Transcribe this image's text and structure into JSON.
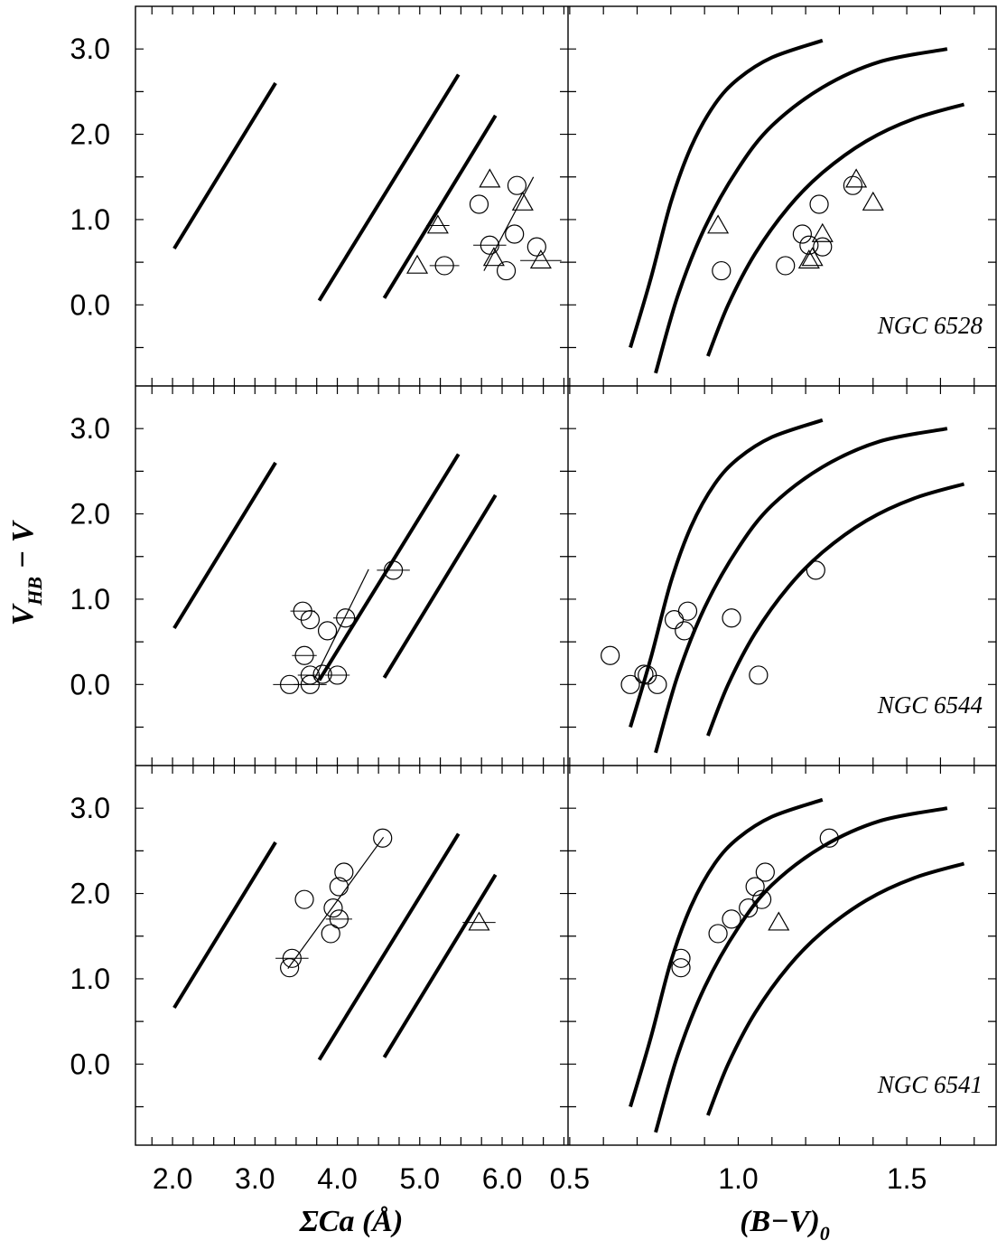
{
  "chart_data": {
    "type": "scatter",
    "y_axis": {
      "label_main": "V",
      "label_sub": "HB",
      "label_tail": " − V",
      "range": [
        -0.95,
        3.5
      ],
      "ticks": [
        "3.0",
        "2.0",
        "1.0",
        "0.0"
      ],
      "tick_values": [
        3.0,
        2.0,
        1.0,
        0.0
      ]
    },
    "x_left": {
      "label": "ΣCa (Å)",
      "range": [
        1.55,
        6.8
      ],
      "ticks": [
        "2.0",
        "3.0",
        "4.0",
        "5.0",
        "6.0"
      ],
      "tick_values": [
        2.0,
        3.0,
        4.0,
        5.0,
        6.0
      ]
    },
    "x_right": {
      "label_main": "(B−V)",
      "label_sub": "0",
      "range": [
        0.495,
        1.765
      ],
      "ticks": [
        "0.5",
        "1.0",
        "1.5"
      ],
      "tick_values": [
        0.5,
        1.0,
        1.5
      ]
    },
    "reference_lines_left": [
      [
        [
          2.02,
          0.66
        ],
        [
          3.25,
          2.6
        ]
      ],
      [
        [
          3.78,
          0.05
        ],
        [
          5.47,
          2.7
        ]
      ],
      [
        [
          4.57,
          0.08
        ],
        [
          5.92,
          2.22
        ]
      ]
    ],
    "reference_curves_right": [
      [
        [
          0.68,
          -0.5
        ],
        [
          0.74,
          0.3
        ],
        [
          0.8,
          1.2
        ],
        [
          0.86,
          1.85
        ],
        [
          0.93,
          2.35
        ],
        [
          1.0,
          2.65
        ],
        [
          1.1,
          2.9
        ],
        [
          1.25,
          3.1
        ]
      ],
      [
        [
          0.755,
          -0.8
        ],
        [
          0.82,
          0.1
        ],
        [
          0.9,
          0.9
        ],
        [
          1.0,
          1.6
        ],
        [
          1.1,
          2.1
        ],
        [
          1.25,
          2.55
        ],
        [
          1.42,
          2.85
        ],
        [
          1.62,
          3.0
        ]
      ],
      [
        [
          0.91,
          -0.6
        ],
        [
          0.97,
          0.0
        ],
        [
          1.05,
          0.6
        ],
        [
          1.15,
          1.15
        ],
        [
          1.25,
          1.55
        ],
        [
          1.38,
          1.92
        ],
        [
          1.52,
          2.18
        ],
        [
          1.67,
          2.35
        ]
      ]
    ],
    "panels": [
      {
        "cluster": "NGC 6528",
        "left_circles": [
          {
            "x": 5.3,
            "y": 0.46,
            "xe": 0.18
          },
          {
            "x": 5.72,
            "y": 1.18
          },
          {
            "x": 6.05,
            "y": 0.4
          },
          {
            "x": 5.85,
            "y": 0.7,
            "xe": 0.2
          },
          {
            "x": 6.15,
            "y": 0.83
          },
          {
            "x": 6.18,
            "y": 1.4
          },
          {
            "x": 6.42,
            "y": 0.68
          }
        ],
        "left_triangles": [
          {
            "x": 4.97,
            "y": 0.46
          },
          {
            "x": 5.22,
            "y": 0.93,
            "xe": 0.14
          },
          {
            "x": 5.85,
            "y": 1.47
          },
          {
            "x": 5.9,
            "y": 0.55
          },
          {
            "x": 6.25,
            "y": 1.2
          },
          {
            "x": 6.47,
            "y": 0.52,
            "xe": 0.25
          }
        ],
        "left_fit": [
          [
            5.78,
            0.4
          ],
          [
            6.38,
            1.5
          ]
        ],
        "right_circles": [
          {
            "x": 0.95,
            "y": 0.4
          },
          {
            "x": 1.14,
            "y": 0.46
          },
          {
            "x": 1.19,
            "y": 0.83
          },
          {
            "x": 1.21,
            "y": 0.7
          },
          {
            "x": 1.24,
            "y": 1.18
          },
          {
            "x": 1.25,
            "y": 0.68
          },
          {
            "x": 1.34,
            "y": 1.4
          }
        ],
        "right_triangles": [
          {
            "x": 0.94,
            "y": 0.93
          },
          {
            "x": 1.21,
            "y": 0.52
          },
          {
            "x": 1.22,
            "y": 0.55
          },
          {
            "x": 1.25,
            "y": 0.83
          },
          {
            "x": 1.35,
            "y": 1.47
          },
          {
            "x": 1.4,
            "y": 1.2
          }
        ]
      },
      {
        "cluster": "NGC 6544",
        "left_circles": [
          {
            "x": 3.42,
            "y": 0.0,
            "xe": 0.2
          },
          {
            "x": 3.58,
            "y": 0.86,
            "xe": 0.15
          },
          {
            "x": 3.6,
            "y": 0.34,
            "xe": 0.15
          },
          {
            "x": 3.67,
            "y": 0.76
          },
          {
            "x": 3.67,
            "y": 0.0,
            "xe": 0.2
          },
          {
            "x": 3.67,
            "y": 0.11,
            "xe": 0.15
          },
          {
            "x": 3.82,
            "y": 0.12
          },
          {
            "x": 3.88,
            "y": 0.63
          },
          {
            "x": 4.0,
            "y": 0.11,
            "xe": 0.15
          },
          {
            "x": 4.1,
            "y": 0.78,
            "xe": 0.15
          },
          {
            "x": 4.68,
            "y": 1.34,
            "xe": 0.2
          }
        ],
        "left_triangles": [],
        "left_fit": [
          [
            3.72,
            0.06
          ],
          [
            4.38,
            1.35
          ]
        ],
        "right_circles": [
          {
            "x": 0.62,
            "y": 0.34
          },
          {
            "x": 0.68,
            "y": 0.0
          },
          {
            "x": 0.72,
            "y": 0.12
          },
          {
            "x": 0.73,
            "y": 0.11
          },
          {
            "x": 0.76,
            "y": 0.0
          },
          {
            "x": 0.81,
            "y": 0.76
          },
          {
            "x": 0.84,
            "y": 0.63
          },
          {
            "x": 0.85,
            "y": 0.86
          },
          {
            "x": 0.98,
            "y": 0.78
          },
          {
            "x": 1.06,
            "y": 0.11
          },
          {
            "x": 1.23,
            "y": 1.34
          }
        ],
        "right_triangles": []
      },
      {
        "cluster": "NGC 6541",
        "left_circles": [
          {
            "x": 3.42,
            "y": 1.13
          },
          {
            "x": 3.45,
            "y": 1.24,
            "xe": 0.2
          },
          {
            "x": 3.6,
            "y": 1.93
          },
          {
            "x": 3.92,
            "y": 1.53
          },
          {
            "x": 3.95,
            "y": 1.83
          },
          {
            "x": 4.02,
            "y": 2.08
          },
          {
            "x": 4.02,
            "y": 1.7,
            "xe": 0.16
          },
          {
            "x": 4.08,
            "y": 2.25
          },
          {
            "x": 4.55,
            "y": 2.65
          }
        ],
        "left_triangles": [
          {
            "x": 5.72,
            "y": 1.66,
            "xe": 0.2
          }
        ],
        "left_fit": [
          [
            3.4,
            1.12
          ],
          [
            4.56,
            2.66
          ]
        ],
        "right_circles": [
          {
            "x": 0.83,
            "y": 1.13
          },
          {
            "x": 0.83,
            "y": 1.24
          },
          {
            "x": 0.94,
            "y": 1.53
          },
          {
            "x": 0.98,
            "y": 1.7
          },
          {
            "x": 1.03,
            "y": 1.83
          },
          {
            "x": 1.05,
            "y": 2.08
          },
          {
            "x": 1.07,
            "y": 1.93
          },
          {
            "x": 1.08,
            "y": 2.25
          },
          {
            "x": 1.27,
            "y": 2.65
          }
        ],
        "right_triangles": [
          {
            "x": 1.12,
            "y": 1.66
          }
        ]
      }
    ]
  }
}
